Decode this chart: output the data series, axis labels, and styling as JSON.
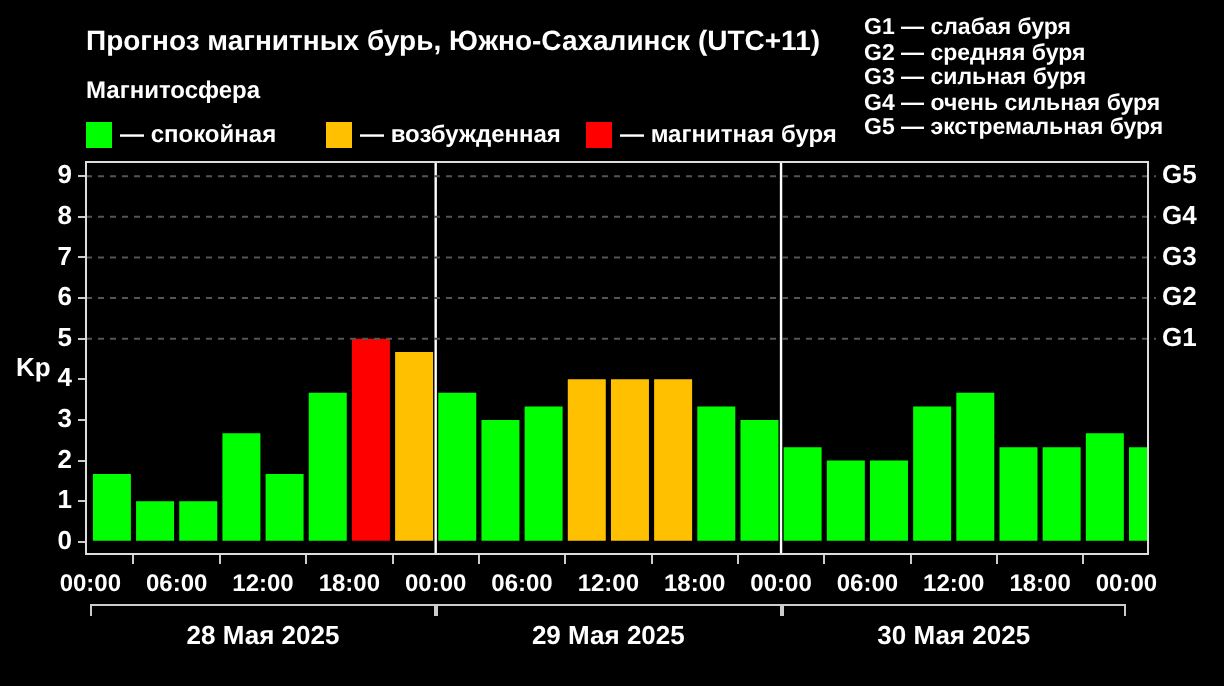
{
  "chart_data": {
    "type": "bar",
    "title": "Прогноз магнитных бурь, Южно-Сахалинск (UTC+11)",
    "legend_title": "Магнитосфера",
    "ylabel": "Kp",
    "x": [
      "2025-05-28T01:30",
      "2025-05-28T04:30",
      "2025-05-28T07:30",
      "2025-05-28T10:30",
      "2025-05-28T13:30",
      "2025-05-28T16:30",
      "2025-05-28T19:30",
      "2025-05-28T22:30",
      "2025-05-29T01:30",
      "2025-05-29T04:30",
      "2025-05-29T07:30",
      "2025-05-29T10:30",
      "2025-05-29T13:30",
      "2025-05-29T16:30",
      "2025-05-29T19:30",
      "2025-05-29T22:30",
      "2025-05-30T01:30",
      "2025-05-30T04:30",
      "2025-05-30T07:30",
      "2025-05-30T10:30",
      "2025-05-30T13:30",
      "2025-05-30T16:30",
      "2025-05-30T19:30",
      "2025-05-30T22:30",
      "2025-05-31T01:30"
    ],
    "series": [
      {
        "name": "— спокойная",
        "color": "#00ff00",
        "values": [
          1.67,
          1,
          1,
          2.67,
          1.67,
          3.67,
          null,
          null,
          3.67,
          3,
          3.33,
          null,
          null,
          null,
          3.33,
          3,
          2.33,
          2,
          2,
          3.33,
          3.67,
          2.33,
          2.33,
          2.67,
          2.33
        ]
      },
      {
        "name": "— возбужденная",
        "color": "#ffc000",
        "values": [
          null,
          null,
          null,
          null,
          null,
          null,
          null,
          4.67,
          null,
          null,
          null,
          4,
          4,
          4,
          null,
          null,
          null,
          null,
          null,
          null,
          null,
          null,
          null,
          null,
          null
        ]
      },
      {
        "name": "— магнитная буря",
        "color": "#ff0000",
        "values": [
          null,
          null,
          null,
          null,
          null,
          null,
          5,
          null,
          null,
          null,
          null,
          null,
          null,
          null,
          null,
          null,
          null,
          null,
          null,
          null,
          null,
          null,
          null,
          null,
          null
        ]
      }
    ],
    "xlim": [
      "2025-05-27T23:42",
      "2025-05-31T01:30"
    ],
    "xticks": [
      {
        "value": "2025-05-28T00:00",
        "label": "00:00"
      },
      {
        "value": "2025-05-28T06:00",
        "label": "06:00"
      },
      {
        "value": "2025-05-28T12:00",
        "label": "12:00"
      },
      {
        "value": "2025-05-28T18:00",
        "label": "18:00"
      },
      {
        "value": "2025-05-29T00:00",
        "label": "00:00"
      },
      {
        "value": "2025-05-29T06:00",
        "label": "06:00"
      },
      {
        "value": "2025-05-29T12:00",
        "label": "12:00"
      },
      {
        "value": "2025-05-29T18:00",
        "label": "18:00"
      },
      {
        "value": "2025-05-30T00:00",
        "label": "00:00"
      },
      {
        "value": "2025-05-30T06:00",
        "label": "06:00"
      },
      {
        "value": "2025-05-30T12:00",
        "label": "12:00"
      },
      {
        "value": "2025-05-30T18:00",
        "label": "18:00"
      },
      {
        "value": "2025-05-31T00:00",
        "label": "00:00"
      }
    ],
    "ylim": [
      -0.3,
      9.35
    ],
    "yticks": [
      0,
      1,
      2,
      3,
      4,
      5,
      6,
      7,
      8,
      9
    ],
    "ref_lines": [
      {
        "axis": "x",
        "value": "2025-05-29T00:00",
        "color": "#ffffff",
        "line_style": "solid"
      },
      {
        "axis": "x",
        "value": "2025-05-30T00:00",
        "color": "#ffffff",
        "line_style": "solid"
      },
      {
        "axis": "y",
        "value": 5,
        "label": "G1",
        "color": "#555555",
        "line_style": "dashed"
      },
      {
        "axis": "y",
        "value": 6,
        "label": "G2",
        "color": "#555555",
        "line_style": "dashed"
      },
      {
        "axis": "y",
        "value": 7,
        "label": "G3",
        "color": "#555555",
        "line_style": "dashed"
      },
      {
        "axis": "y",
        "value": 8,
        "label": "G4",
        "color": "#555555",
        "line_style": "dashed"
      },
      {
        "axis": "y",
        "value": 9,
        "label": "G5",
        "color": "#555555",
        "line_style": "dashed"
      }
    ],
    "annotations": [
      "G1 — слабая буря",
      "G2 — средняя буря",
      "G3 — сильная буря",
      "G4 — очень сильная буря",
      "G5 — экстремальная буря",
      "28 Мая 2025",
      "29 Мая 2025",
      "30 Мая 2025"
    ],
    "legend": "top left"
  }
}
